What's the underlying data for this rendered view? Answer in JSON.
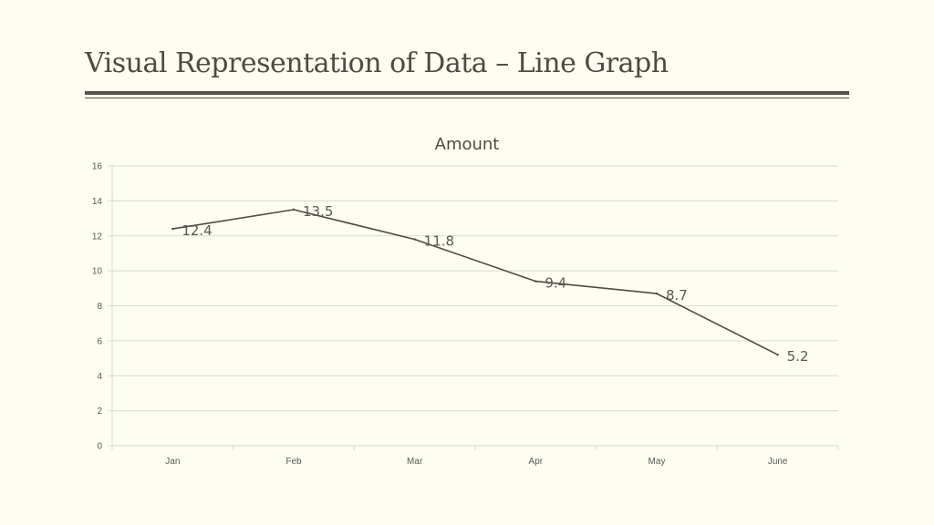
{
  "slide": {
    "title": "Visual Representation of Data – Line Graph"
  },
  "colors": {
    "background": "#FDFDF1",
    "title_text": "#4F4A43",
    "rule": "#57524C",
    "line": "#4F4A43",
    "gridline": "#D9D9D9",
    "axis_text": "#595959"
  },
  "chart_data": {
    "type": "line",
    "title": "Amount",
    "categories": [
      "Jan",
      "Feb",
      "Mar",
      "Apr",
      "May",
      "June"
    ],
    "series": [
      {
        "values": [
          12.4,
          13.5,
          11.8,
          9.4,
          8.7,
          5.2
        ]
      }
    ],
    "data_labels": [
      "12.4",
      "13.5",
      "11.8",
      "9.4",
      "8.7",
      "5.2"
    ],
    "yticks": [
      0,
      2,
      4,
      6,
      8,
      10,
      12,
      14,
      16
    ],
    "ylim": [
      0,
      16
    ],
    "grid": true,
    "legend": "none",
    "xlabel": "",
    "ylabel": ""
  }
}
